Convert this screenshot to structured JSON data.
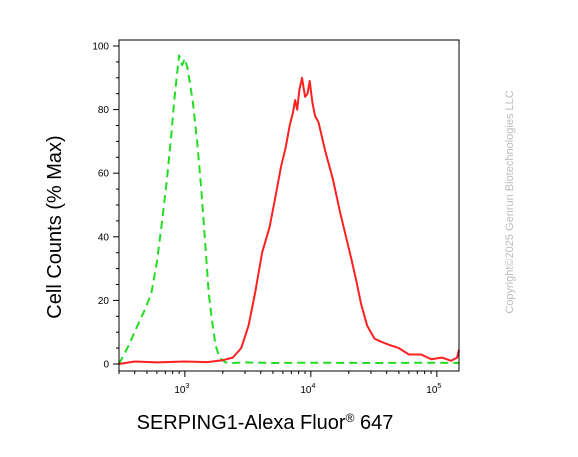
{
  "chart_data": {
    "type": "line",
    "title": "",
    "xlabel": "SERPING1-Alexa Fluor",
    "xlabel_superscript": "®",
    "xlabel_suffix": " 647",
    "ylabel": "Cell Counts (% Max)",
    "x_scale": "log",
    "xlim": [
      300,
      150000
    ],
    "ylim": [
      0,
      100
    ],
    "grid": false,
    "x_tick_labels": [
      {
        "value": 1000,
        "base": "10",
        "exp": "3"
      },
      {
        "value": 10000,
        "base": "10",
        "exp": "4"
      },
      {
        "value": 100000,
        "base": "10",
        "exp": "5"
      }
    ],
    "y_ticks": [
      0,
      20,
      40,
      60,
      80,
      100
    ],
    "series": [
      {
        "color": "#22dd22",
        "dash": "dashed",
        "x": [
          300,
          360,
          420,
          480,
          540,
          600,
          660,
          720,
          780,
          820,
          860,
          900,
          950,
          1000,
          1050,
          1100,
          1160,
          1250,
          1350,
          1450,
          1550,
          1650,
          1750,
          1850,
          1950,
          2100,
          2400,
          3000,
          5000,
          10000,
          30000,
          100000,
          150000
        ],
        "y": [
          0,
          6,
          12,
          17,
          22,
          32,
          45,
          58,
          72,
          82,
          90,
          97,
          94,
          96,
          93,
          88,
          82,
          70,
          55,
          38,
          22,
          13,
          6,
          3,
          1.5,
          0.5,
          0.3,
          0.5,
          0.3,
          0.4,
          0.3,
          0.4,
          0.3
        ]
      },
      {
        "color": "#ff2020",
        "dash": "solid",
        "x": [
          300,
          400,
          600,
          1000,
          1500,
          2000,
          2400,
          2800,
          3200,
          3600,
          4100,
          4700,
          5200,
          5800,
          6300,
          6800,
          7200,
          7500,
          7800,
          8100,
          8500,
          9000,
          9400,
          9800,
          10300,
          10800,
          11500,
          13000,
          15000,
          17000,
          19000,
          21000,
          23000,
          25000,
          28000,
          32000,
          36000,
          42000,
          50000,
          60000,
          75000,
          90000,
          110000,
          130000,
          145000,
          150000
        ],
        "y": [
          0,
          0.8,
          0.5,
          0.8,
          0.6,
          1.2,
          2,
          5,
          12,
          22,
          35,
          43,
          52,
          62,
          68,
          75,
          79,
          83,
          80,
          86,
          90,
          84,
          85,
          89,
          82,
          78,
          76,
          67,
          58,
          48,
          40,
          33,
          26,
          19,
          12,
          8,
          7,
          6,
          5,
          3,
          3,
          1.5,
          2,
          1,
          2,
          4.5
        ]
      }
    ]
  },
  "copyright": "Copyright©2025 Genrun Biotechnologies LLC"
}
